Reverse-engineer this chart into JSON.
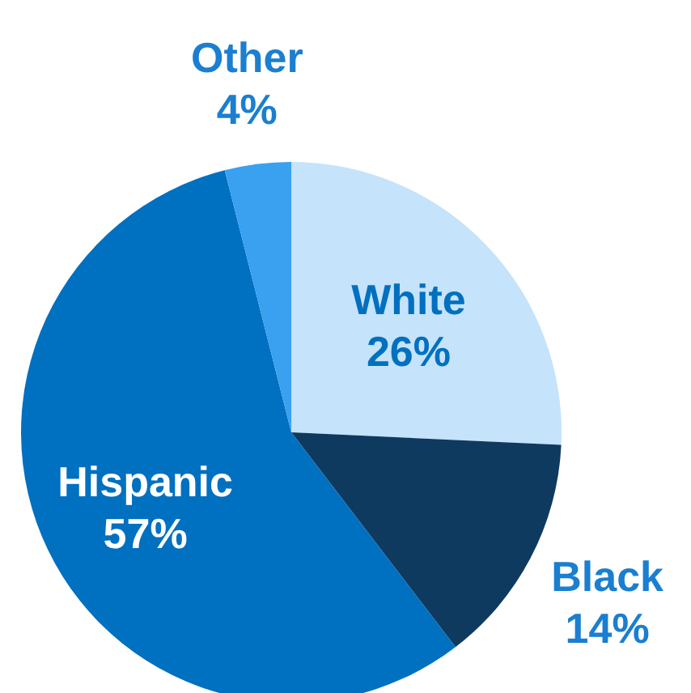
{
  "chart_data": {
    "type": "pie",
    "categories": [
      "White",
      "Black",
      "Hispanic",
      "Other"
    ],
    "values": [
      26,
      14,
      57,
      4
    ],
    "value_labels": [
      "26%",
      "14%",
      "57%",
      "4%"
    ],
    "colors": [
      "#c5e3fb",
      "#0f3a5f",
      "#0070c0",
      "#3aa0f0"
    ]
  }
}
